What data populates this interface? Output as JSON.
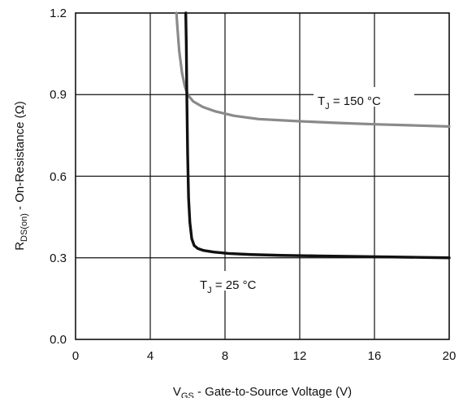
{
  "chart_data": {
    "type": "line",
    "xlabel": {
      "main": "V",
      "sub": "GS",
      "rest": " - Gate-to-Source Voltage (V)"
    },
    "ylabel": {
      "main": "R",
      "sub": "DS(on)",
      "rest": " - On-Resistance (Ω)"
    },
    "xlim": [
      0,
      20
    ],
    "ylim": [
      0,
      1.2
    ],
    "x_ticks": [
      0,
      4,
      8,
      12,
      16,
      20
    ],
    "y_ticks": [
      0.0,
      0.3,
      0.6,
      0.9,
      1.2
    ],
    "x_tick_labels": [
      "0",
      "4",
      "8",
      "12",
      "16",
      "20"
    ],
    "y_tick_labels": [
      "0.0",
      "0.3",
      "0.6",
      "0.9",
      "1.2"
    ],
    "grid": true,
    "series": [
      {
        "annotation": {
          "main": "T",
          "sub": "J",
          "rest": " = 150 °C"
        },
        "color": "#8a8a8a",
        "x": [
          5.4,
          5.45,
          5.55,
          5.7,
          5.85,
          6.0,
          6.3,
          6.8,
          7.5,
          8.5,
          9.8,
          12,
          14,
          16,
          18,
          20
        ],
        "y": [
          1.2,
          1.15,
          1.06,
          0.98,
          0.93,
          0.9,
          0.875,
          0.855,
          0.838,
          0.822,
          0.81,
          0.802,
          0.796,
          0.791,
          0.787,
          0.783
        ]
      },
      {
        "annotation": {
          "main": "T",
          "sub": "J",
          "rest": " = 25 °C"
        },
        "color": "#111111",
        "x": [
          5.9,
          5.93,
          5.96,
          6.0,
          6.05,
          6.12,
          6.22,
          6.35,
          6.55,
          6.85,
          7.4,
          8.2,
          9.4,
          11,
          13,
          15,
          17,
          20
        ],
        "y": [
          1.2,
          1.08,
          0.88,
          0.68,
          0.52,
          0.43,
          0.37,
          0.345,
          0.334,
          0.327,
          0.321,
          0.316,
          0.312,
          0.309,
          0.307,
          0.305,
          0.303,
          0.3
        ]
      }
    ]
  }
}
